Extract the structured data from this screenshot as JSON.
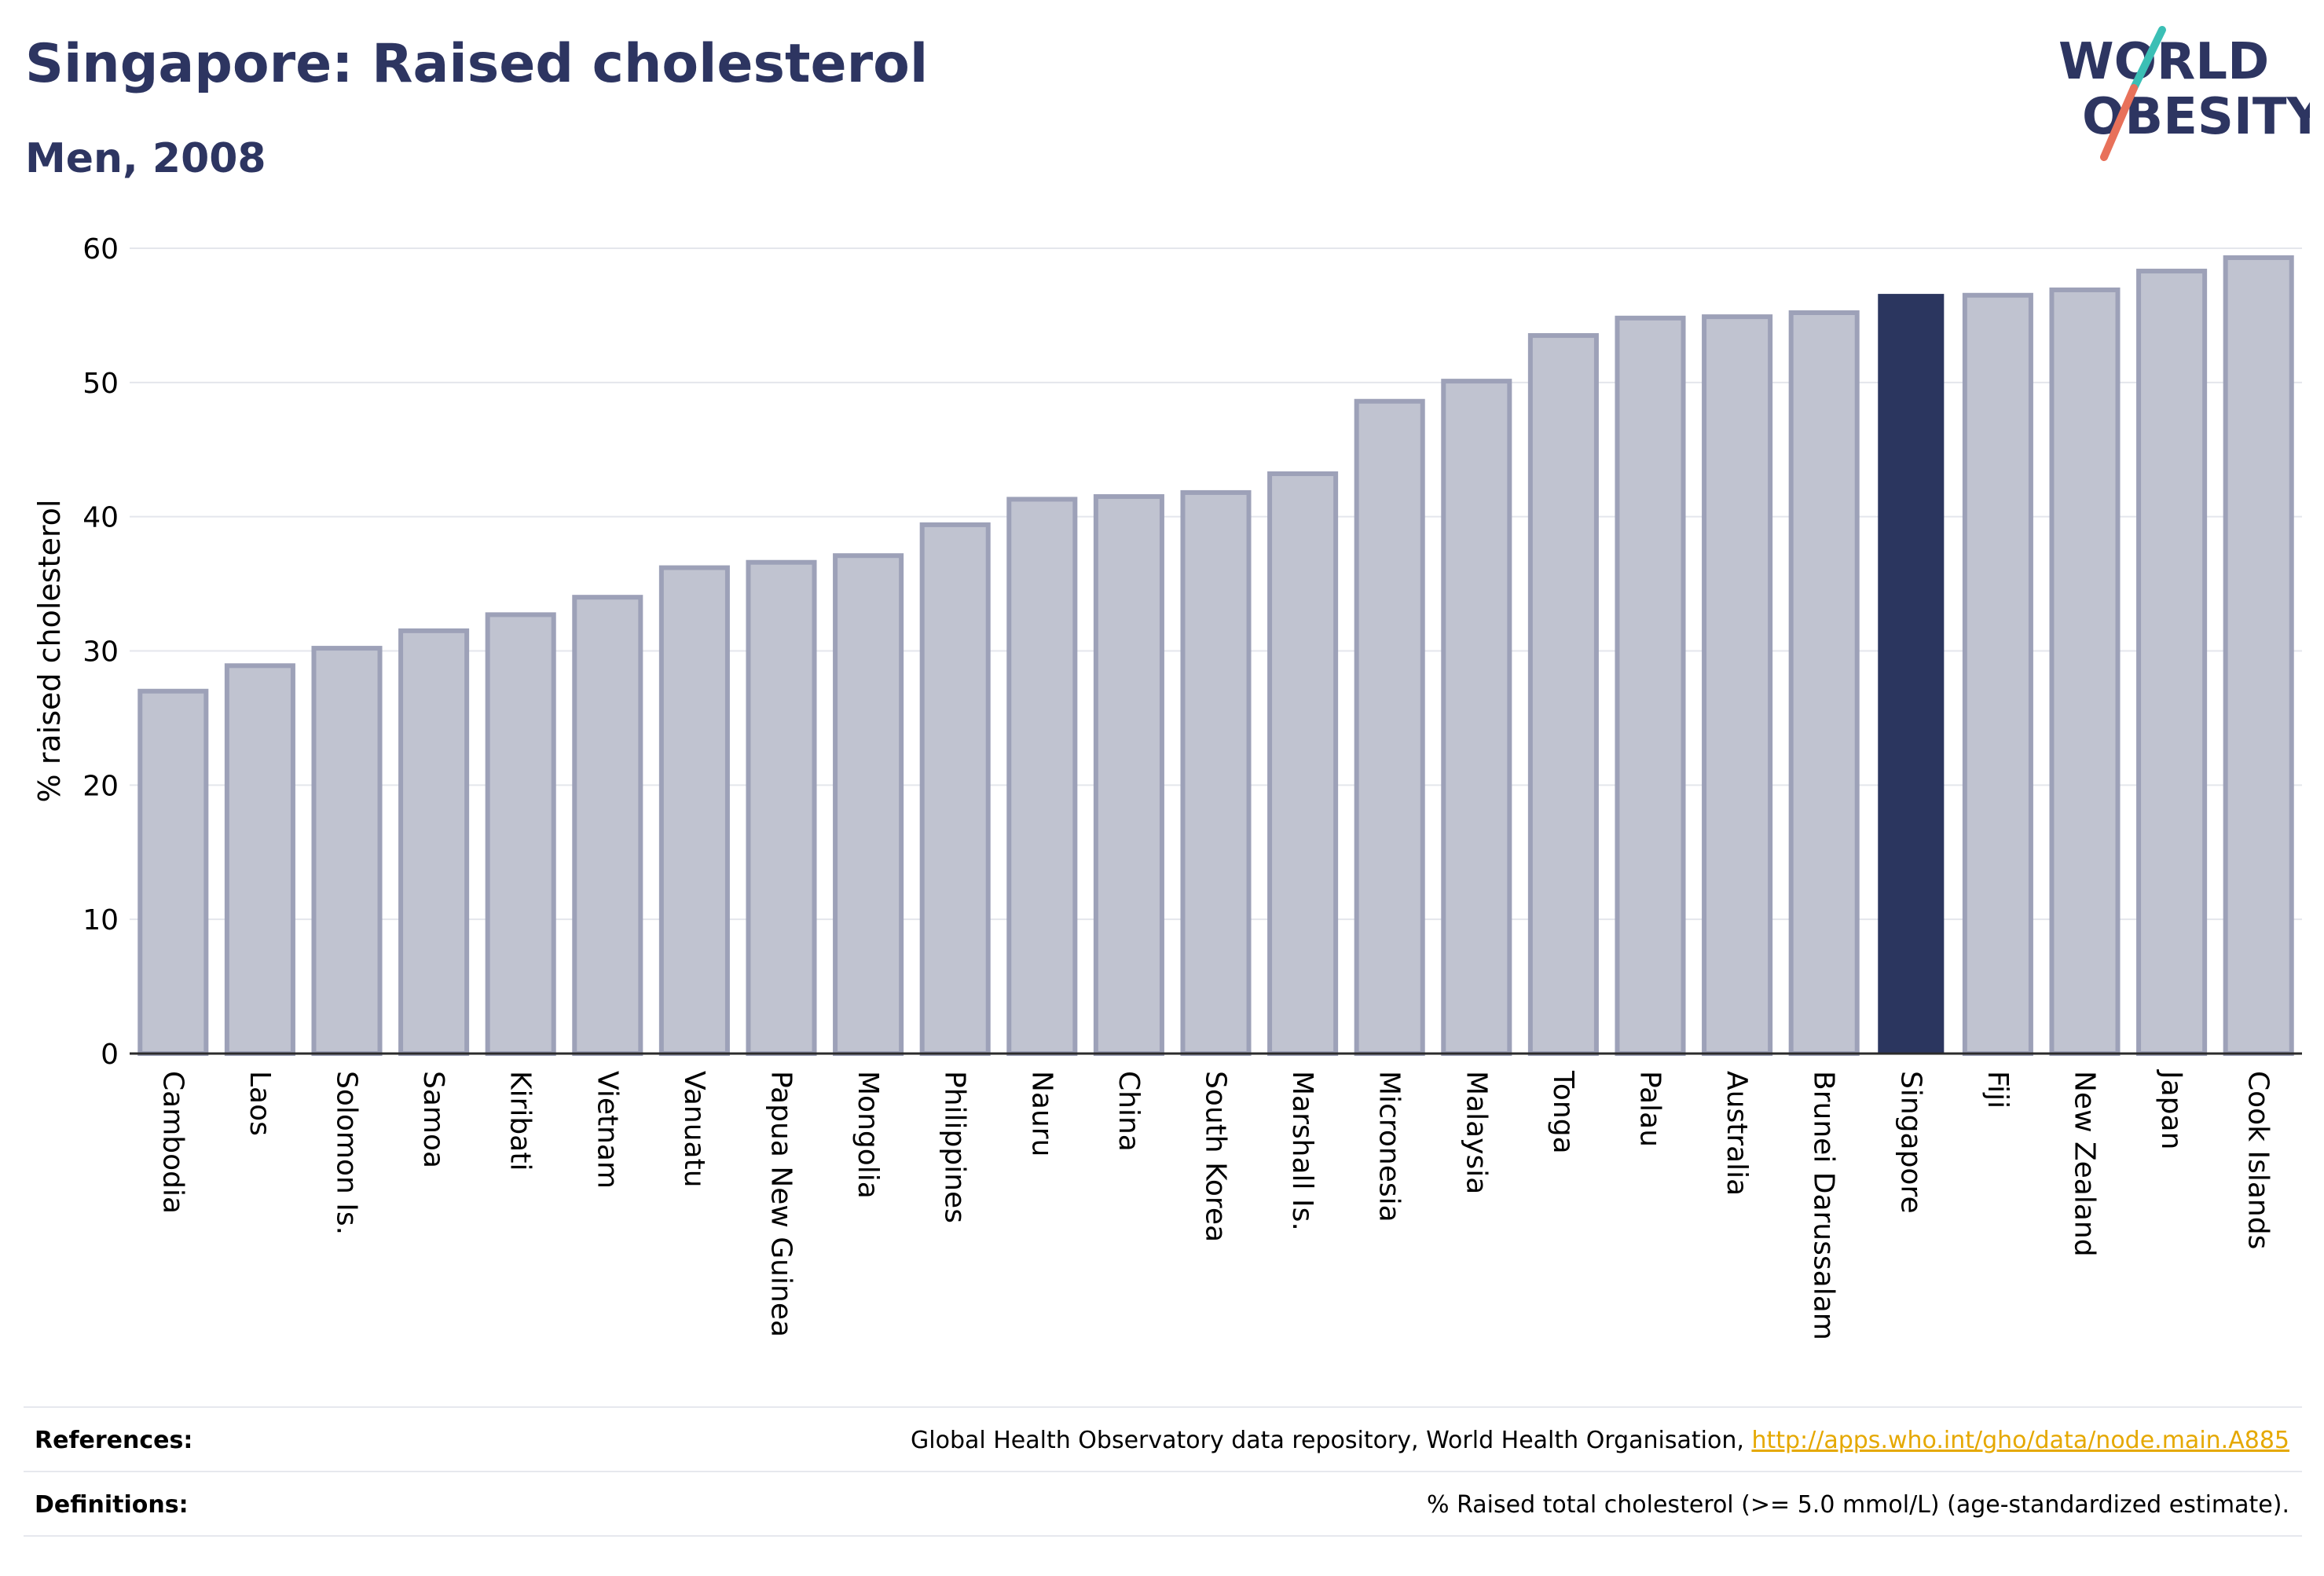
{
  "header": {
    "title": "Singapore: Raised cholesterol",
    "subtitle": "Men, 2008"
  },
  "logo": {
    "line1": "WORLD",
    "line2": "OBESITY"
  },
  "colors": {
    "highlight": "#2b365f",
    "bar_fill": "#c0c3d0",
    "bar_stroke": "#9da1b8",
    "grid": "#e4e6ec",
    "axis": "#2b2b2b",
    "logo_text": "#2d3561",
    "logo_teal": "#3bbfb5",
    "logo_coral": "#e8715a",
    "link": "#e5a800"
  },
  "chart_data": {
    "type": "bar",
    "ylabel": "% raised cholesterol",
    "ylim": [
      0,
      60
    ],
    "yticks": [
      0,
      10,
      20,
      30,
      40,
      50,
      60
    ],
    "grid": true,
    "highlight": "Singapore",
    "categories": [
      "Cambodia",
      "Laos",
      "Solomon Is.",
      "Samoa",
      "Kiribati",
      "Vietnam",
      "Vanuatu",
      "Papua New Guinea",
      "Mongolia",
      "Philippines",
      "Nauru",
      "China",
      "South Korea",
      "Marshall Is.",
      "Micronesia",
      "Malaysia",
      "Tonga",
      "Palau",
      "Australia",
      "Brunei Darussalam",
      "Singapore",
      "Fiji",
      "New Zealand",
      "Japan",
      "Cook Islands"
    ],
    "values": [
      27.0,
      28.9,
      30.2,
      31.5,
      32.7,
      34.0,
      36.2,
      36.6,
      37.1,
      39.4,
      41.3,
      41.5,
      41.8,
      43.2,
      48.6,
      50.1,
      53.5,
      54.8,
      54.9,
      55.2,
      56.6,
      56.5,
      56.9,
      58.3,
      59.3
    ]
  },
  "footer": {
    "references_label": "References:",
    "references_text": "Global Health Observatory data repository, World Health Organisation, ",
    "references_link": "http://apps.who.int/gho/data/node.main.A885",
    "definitions_label": "Definitions:",
    "definitions_text": "% Raised total cholesterol (>= 5.0 mmol/L) (age-standardized estimate)."
  }
}
